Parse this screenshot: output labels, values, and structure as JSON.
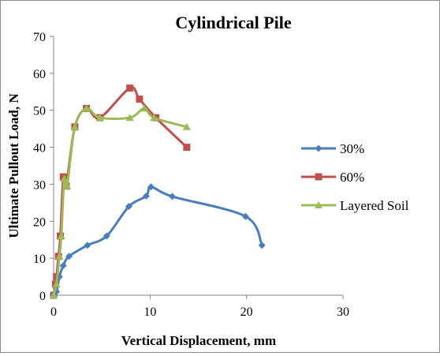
{
  "chart_data": {
    "type": "scatter",
    "title": "Cylindrical Pile",
    "xlabel": "Vertical Displacement, mm",
    "ylabel": "Ultimate Pullout Load, N",
    "xlim": [
      0,
      30
    ],
    "ylim": [
      0,
      70
    ],
    "xticks": [
      "0",
      "10",
      "20",
      "30"
    ],
    "yticks": [
      "0",
      "10",
      "20",
      "30",
      "40",
      "50",
      "60",
      "70"
    ],
    "grid": false,
    "legend_position": "right",
    "series": [
      {
        "name": "30%",
        "color": "#4a7ebb",
        "marker": "diamond",
        "points": [
          [
            0,
            0
          ],
          [
            0.3,
            1
          ],
          [
            0.6,
            5
          ],
          [
            1.0,
            8
          ],
          [
            1.6,
            10.5
          ],
          [
            3.5,
            13.5
          ],
          [
            5.5,
            16
          ],
          [
            7.8,
            24
          ],
          [
            9.6,
            26.8
          ],
          [
            10.1,
            29.3
          ],
          [
            12.3,
            26.7
          ],
          [
            19.9,
            21.3
          ],
          [
            21.6,
            13.5
          ]
        ]
      },
      {
        "name": "60%",
        "color": "#c0504d",
        "marker": "square",
        "points": [
          [
            0,
            0
          ],
          [
            0.2,
            3
          ],
          [
            0.3,
            5
          ],
          [
            0.5,
            10.5
          ],
          [
            0.7,
            16
          ],
          [
            1.0,
            32
          ],
          [
            1.3,
            29.5
          ],
          [
            2.2,
            45.5
          ],
          [
            3.4,
            50.5
          ],
          [
            4.8,
            48
          ],
          [
            7.9,
            56
          ],
          [
            8.9,
            53
          ],
          [
            10.6,
            48
          ],
          [
            13.8,
            40
          ]
        ]
      },
      {
        "name": "Layered Soil",
        "color": "#9bbb59",
        "marker": "triangle",
        "points": [
          [
            0,
            0
          ],
          [
            0.3,
            3
          ],
          [
            0.6,
            10.5
          ],
          [
            0.8,
            16
          ],
          [
            1.1,
            31.5
          ],
          [
            1.4,
            29.5
          ],
          [
            2.2,
            45.5
          ],
          [
            3.4,
            50.5
          ],
          [
            4.8,
            48
          ],
          [
            7.9,
            48
          ],
          [
            9.4,
            50.5
          ],
          [
            10.4,
            48
          ],
          [
            13.8,
            45.5
          ]
        ]
      }
    ]
  }
}
